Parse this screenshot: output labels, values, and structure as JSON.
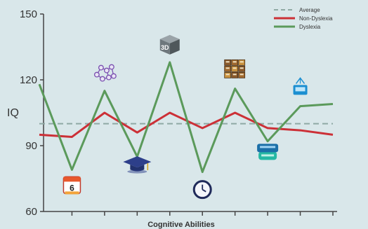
{
  "chart_data": {
    "type": "line",
    "xlabel": "Cognitive Abilities",
    "ylabel": "IQ",
    "ylim": [
      60,
      150
    ],
    "yticks": [
      60,
      90,
      120,
      150
    ],
    "grid": false,
    "legend_position": "top-right",
    "x": [
      0,
      1,
      2,
      3,
      4,
      5,
      6,
      7,
      8,
      9
    ],
    "series": [
      {
        "name": "Average",
        "style": "dashed",
        "color": "#8fa9a4",
        "values": [
          100,
          100,
          100,
          100,
          100,
          100,
          100,
          100,
          100,
          100
        ]
      },
      {
        "name": "Non-Dyslexia",
        "style": "solid",
        "color": "#cc3037",
        "values": [
          95,
          94,
          105,
          96,
          105,
          98,
          105,
          98,
          97,
          95
        ]
      },
      {
        "name": "Dyslexia",
        "style": "solid",
        "color": "#5b9a5b",
        "values": [
          118,
          79,
          115,
          85,
          128,
          78,
          116,
          92,
          108,
          109
        ]
      }
    ],
    "icons": [
      {
        "name": "calendar-icon",
        "x": 1,
        "y": 72,
        "text": "6"
      },
      {
        "name": "network-icon",
        "x": 2,
        "y": 123
      },
      {
        "name": "graduation-cap-icon",
        "x": 3,
        "y": 82
      },
      {
        "name": "cube-icon",
        "x": 4,
        "y": 136,
        "text": "3D"
      },
      {
        "name": "clock-icon",
        "x": 5,
        "y": 70
      },
      {
        "name": "blocks-icon",
        "x": 6,
        "y": 125
      },
      {
        "name": "stack-icon",
        "x": 7,
        "y": 87
      },
      {
        "name": "scanner-icon",
        "x": 8,
        "y": 117
      }
    ],
    "colors": {
      "axis": "#444444",
      "background": "#d9e7ea"
    }
  }
}
